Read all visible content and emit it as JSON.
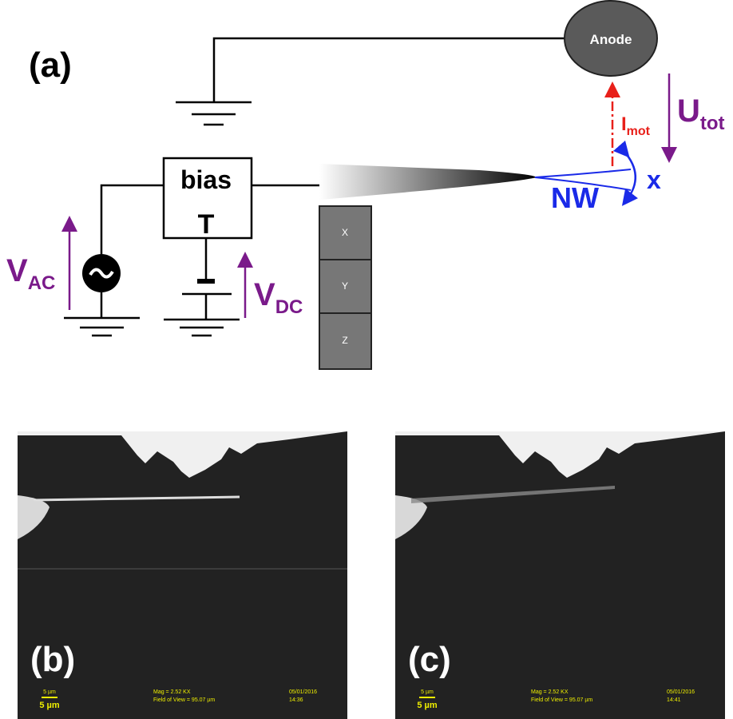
{
  "panel_a": {
    "label": "(a)",
    "anode": "Anode",
    "bias_tee": {
      "line1": "bias",
      "line2": "T"
    },
    "v_ac": {
      "symbol": "V",
      "subscript": "AC"
    },
    "v_dc": {
      "symbol": "V",
      "subscript": "DC"
    },
    "i_mot": {
      "symbol": "I",
      "subscript": "mot"
    },
    "u_tot": {
      "symbol": "U",
      "subscript": "tot"
    },
    "displacement": "x",
    "nanowire": "NW",
    "piezo": [
      "X",
      "Y",
      "Z"
    ]
  },
  "panel_b": {
    "label": "(b)",
    "scale_small": "5 µm",
    "scale": "5 µm",
    "mag": "Mag = 2.52 KX",
    "field": "Field of View = 95.07 µm",
    "date": "05/01/2016",
    "time": "14:36"
  },
  "panel_c": {
    "label": "(c)",
    "scale_small": "5 µm",
    "scale": "5 µm",
    "mag": "Mag = 2.52 KX",
    "field": "Field of View = 95.07 µm",
    "date": "05/01/2016",
    "time": "14:41"
  }
}
